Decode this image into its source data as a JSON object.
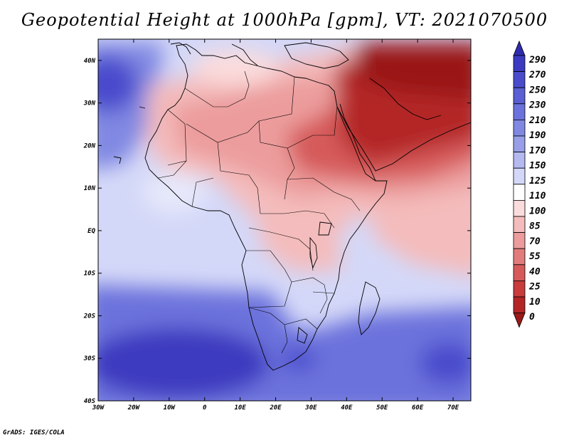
{
  "title": "Geopotential Height at 1000hPa [gpm], VT: 2021070500",
  "credit": "GrADS: IGES/COLA",
  "map": {
    "lon_range": [
      -30,
      75
    ],
    "lat_range": [
      -40,
      45
    ],
    "lon_ticks": [
      "30W",
      "20W",
      "10W",
      "0",
      "10E",
      "20E",
      "30E",
      "40E",
      "50E",
      "60E",
      "70E"
    ],
    "lat_ticks": [
      "40S",
      "30S",
      "20S",
      "10S",
      "EQ",
      "10N",
      "20N",
      "30N",
      "40N"
    ]
  },
  "colorbar": {
    "levels": [
      "290",
      "270",
      "250",
      "230",
      "210",
      "190",
      "170",
      "150",
      "125",
      "110",
      "100",
      "85",
      "70",
      "55",
      "40",
      "25",
      "10",
      "0"
    ],
    "colors": [
      "#2f2bb0",
      "#3c3ac0",
      "#4a4ccc",
      "#5a5fd4",
      "#6c72dc",
      "#8088e2",
      "#989fe8",
      "#b4baf0",
      "#d4d8f8",
      "#ffffff",
      "#fbdcdc",
      "#f4bcbc",
      "#ec9c9c",
      "#e27c7c",
      "#d65a5a",
      "#c83c3c",
      "#b42626",
      "#9a1818"
    ]
  }
}
